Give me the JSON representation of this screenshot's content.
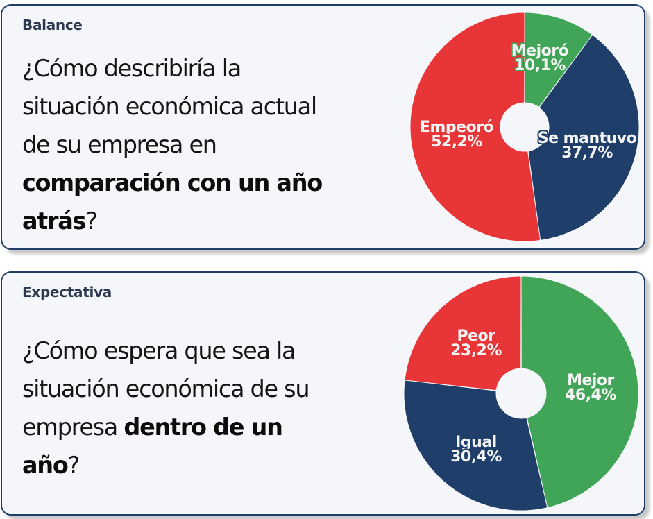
{
  "cards": [
    {
      "tag": "Balance",
      "question": {
        "parts": [
          {
            "text": "¿Cómo describiría la situación económica actual de su empresa en ",
            "bold": false
          },
          {
            "text": "comparación con un año atrás",
            "bold": true
          },
          {
            "text": "?",
            "bold": false
          }
        ]
      }
    },
    {
      "tag": "Expectativa",
      "question": {
        "parts": [
          {
            "text": "¿Cómo espera que sea la situación económica de su empresa ",
            "bold": false
          },
          {
            "text": "dentro de un año",
            "bold": true
          },
          {
            "text": "?",
            "bold": false
          }
        ]
      }
    }
  ],
  "colors": {
    "red": "#e83538",
    "navy": "#1f3f6a",
    "green": "#41a558",
    "card_bg": "#f5f6fa",
    "card_border": "#1f3f6a"
  },
  "chart_data": [
    {
      "type": "pie",
      "title": "Balance",
      "donut": true,
      "categories": [
        "Mejoró",
        "Se mantuvo",
        "Empeoró"
      ],
      "values": [
        10.1,
        37.7,
        52.2
      ],
      "value_labels": [
        "10,1%",
        "37,7%",
        "52,2%"
      ],
      "colors": [
        "#41a558",
        "#1f3f6a",
        "#e83538"
      ],
      "start_angle": "top, clockwise",
      "legend": "none (labels on slices)"
    },
    {
      "type": "pie",
      "title": "Expectativa",
      "donut": true,
      "categories": [
        "Mejor",
        "Igual",
        "Peor"
      ],
      "values": [
        46.4,
        30.4,
        23.2
      ],
      "value_labels": [
        "46,4%",
        "30,4%",
        "23,2%"
      ],
      "colors": [
        "#41a558",
        "#1f3f6a",
        "#e83538"
      ],
      "start_angle": "top, clockwise",
      "legend": "none (labels on slices)"
    }
  ]
}
